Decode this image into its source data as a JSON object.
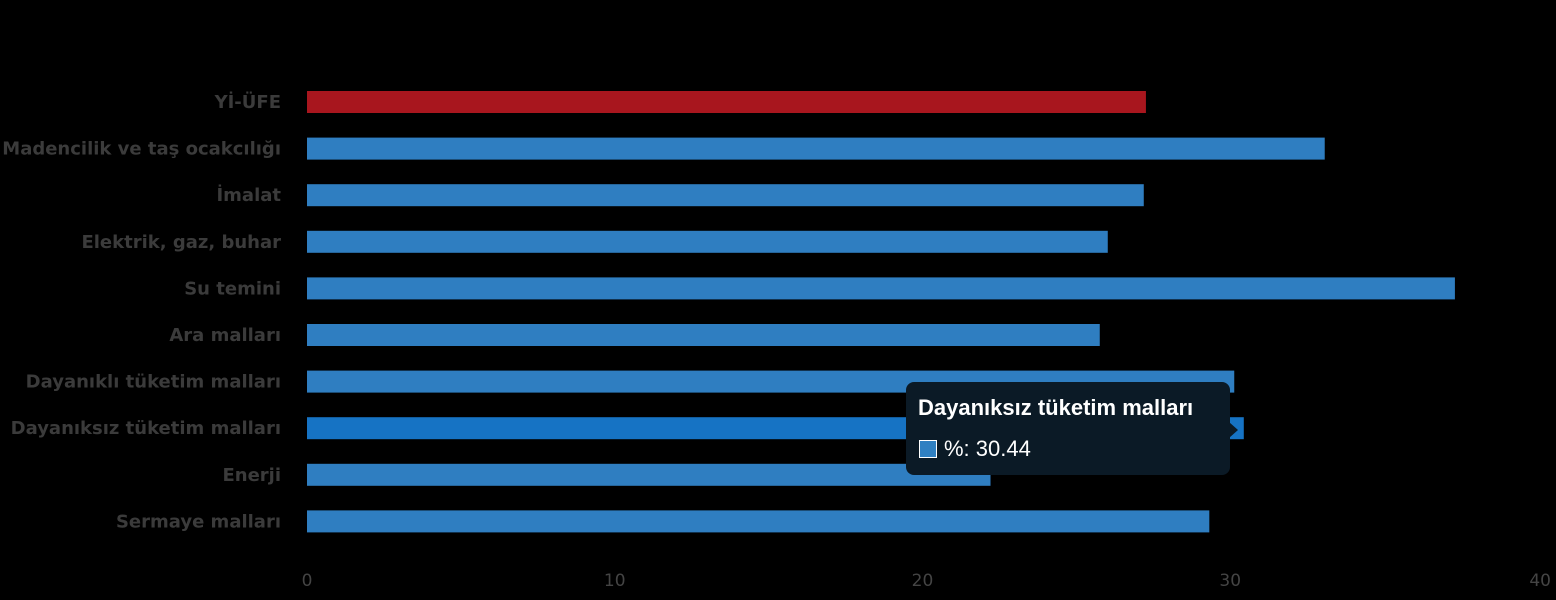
{
  "chart_data": {
    "type": "bar",
    "orientation": "horizontal",
    "categories": [
      "Yİ-ÜFE",
      "Madencilik ve taş ocakcılığı",
      "İmalat",
      "Elektrik, gaz, buhar",
      "Su temini",
      "Ara malları",
      "Dayanıklı tüketim malları",
      "Dayanıksız tüketim malları",
      "Enerji",
      "Sermaye malları"
    ],
    "values": [
      27.26,
      33.07,
      27.19,
      26.02,
      37.3,
      25.76,
      30.13,
      30.44,
      22.21,
      29.32
    ],
    "xlim": [
      0,
      40
    ],
    "xticks": [
      0,
      10,
      20,
      30,
      40
    ],
    "grid": false,
    "colors": {
      "highlight": "#a8161e",
      "bar": "#2f7ec1",
      "hover": "#1673c4",
      "category_text": "#3b3b3b",
      "tick_text": "#444444",
      "tooltip_bg": "#0b1a26"
    },
    "highlight_index": 0,
    "hover_index": 7
  },
  "tooltip": {
    "title": "Dayanıksız tüketim malları",
    "label": "%: 30.44"
  }
}
